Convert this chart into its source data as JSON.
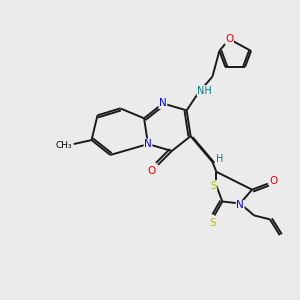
{
  "background_color": "#ebebeb",
  "bond_color": "#1a1a1a",
  "atom_colors": {
    "N": "#0000ee",
    "O": "#ee0000",
    "S": "#bbbb00",
    "H": "#008080"
  },
  "figsize": [
    3.0,
    3.0
  ],
  "dpi": 100
}
